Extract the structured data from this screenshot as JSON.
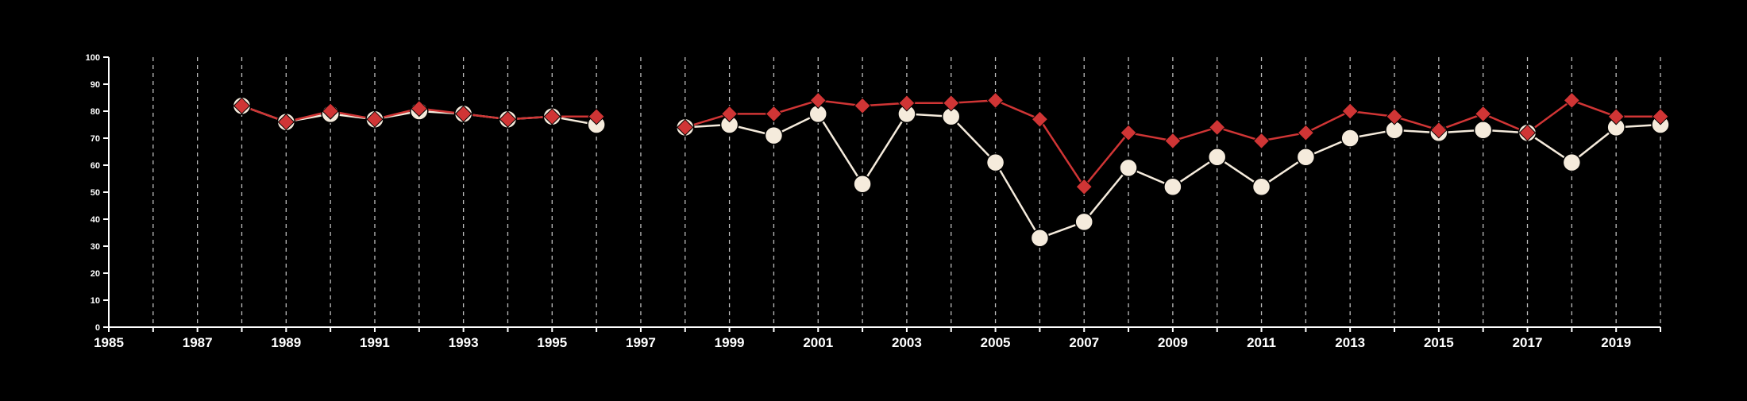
{
  "chart_data": {
    "type": "line",
    "title": "",
    "xlabel": "",
    "ylabel": "",
    "xlim": [
      1985,
      2020
    ],
    "ylim": [
      0,
      100
    ],
    "x_ticks": [
      "1985",
      "1987",
      "1989",
      "1991",
      "1993",
      "1995",
      "1997",
      "1999",
      "2001",
      "2003",
      "2005",
      "2007",
      "2009",
      "2011",
      "2013",
      "2015",
      "2017",
      "2019"
    ],
    "y_ticks": [
      "0",
      "10",
      "20",
      "30",
      "40",
      "50",
      "60",
      "70",
      "80",
      "90",
      "100"
    ],
    "vertical_gridlines": "dashed, every year",
    "background": "#000000",
    "series": [
      {
        "color": "#f5ebdc",
        "marker": "circle",
        "points": [
          [
            1988,
            82
          ],
          [
            1989,
            76
          ],
          [
            1990,
            79
          ],
          [
            1991,
            77
          ],
          [
            1992,
            80
          ],
          [
            1993,
            79
          ],
          [
            1994,
            77
          ],
          [
            1995,
            78
          ],
          [
            1996,
            75
          ],
          [
            1998,
            74
          ],
          [
            1999,
            75
          ],
          [
            2000,
            71
          ],
          [
            2001,
            79
          ],
          [
            2002,
            53
          ],
          [
            2003,
            79
          ],
          [
            2004,
            78
          ],
          [
            2005,
            61
          ],
          [
            2006,
            33
          ],
          [
            2007,
            39
          ],
          [
            2008,
            59
          ],
          [
            2009,
            52
          ],
          [
            2010,
            63
          ],
          [
            2011,
            52
          ],
          [
            2012,
            63
          ],
          [
            2013,
            70
          ],
          [
            2014,
            73
          ],
          [
            2015,
            72
          ],
          [
            2016,
            73
          ],
          [
            2017,
            72
          ],
          [
            2018,
            61
          ],
          [
            2019,
            74
          ],
          [
            2020,
            75
          ]
        ]
      },
      {
        "color": "#d03535",
        "marker": "diamond",
        "points": [
          [
            1988,
            82
          ],
          [
            1989,
            76
          ],
          [
            1990,
            80
          ],
          [
            1991,
            77
          ],
          [
            1992,
            81
          ],
          [
            1993,
            79
          ],
          [
            1994,
            77
          ],
          [
            1995,
            78
          ],
          [
            1996,
            78
          ],
          [
            1998,
            74
          ],
          [
            1999,
            79
          ],
          [
            2000,
            79
          ],
          [
            2001,
            84
          ],
          [
            2002,
            82
          ],
          [
            2003,
            83
          ],
          [
            2004,
            83
          ],
          [
            2005,
            84
          ],
          [
            2006,
            77
          ],
          [
            2007,
            52
          ],
          [
            2008,
            72
          ],
          [
            2009,
            69
          ],
          [
            2010,
            74
          ],
          [
            2011,
            69
          ],
          [
            2012,
            72
          ],
          [
            2013,
            80
          ],
          [
            2014,
            78
          ],
          [
            2015,
            73
          ],
          [
            2016,
            79
          ],
          [
            2017,
            72
          ],
          [
            2018,
            84
          ],
          [
            2019,
            78
          ],
          [
            2020,
            78
          ]
        ]
      }
    ]
  }
}
